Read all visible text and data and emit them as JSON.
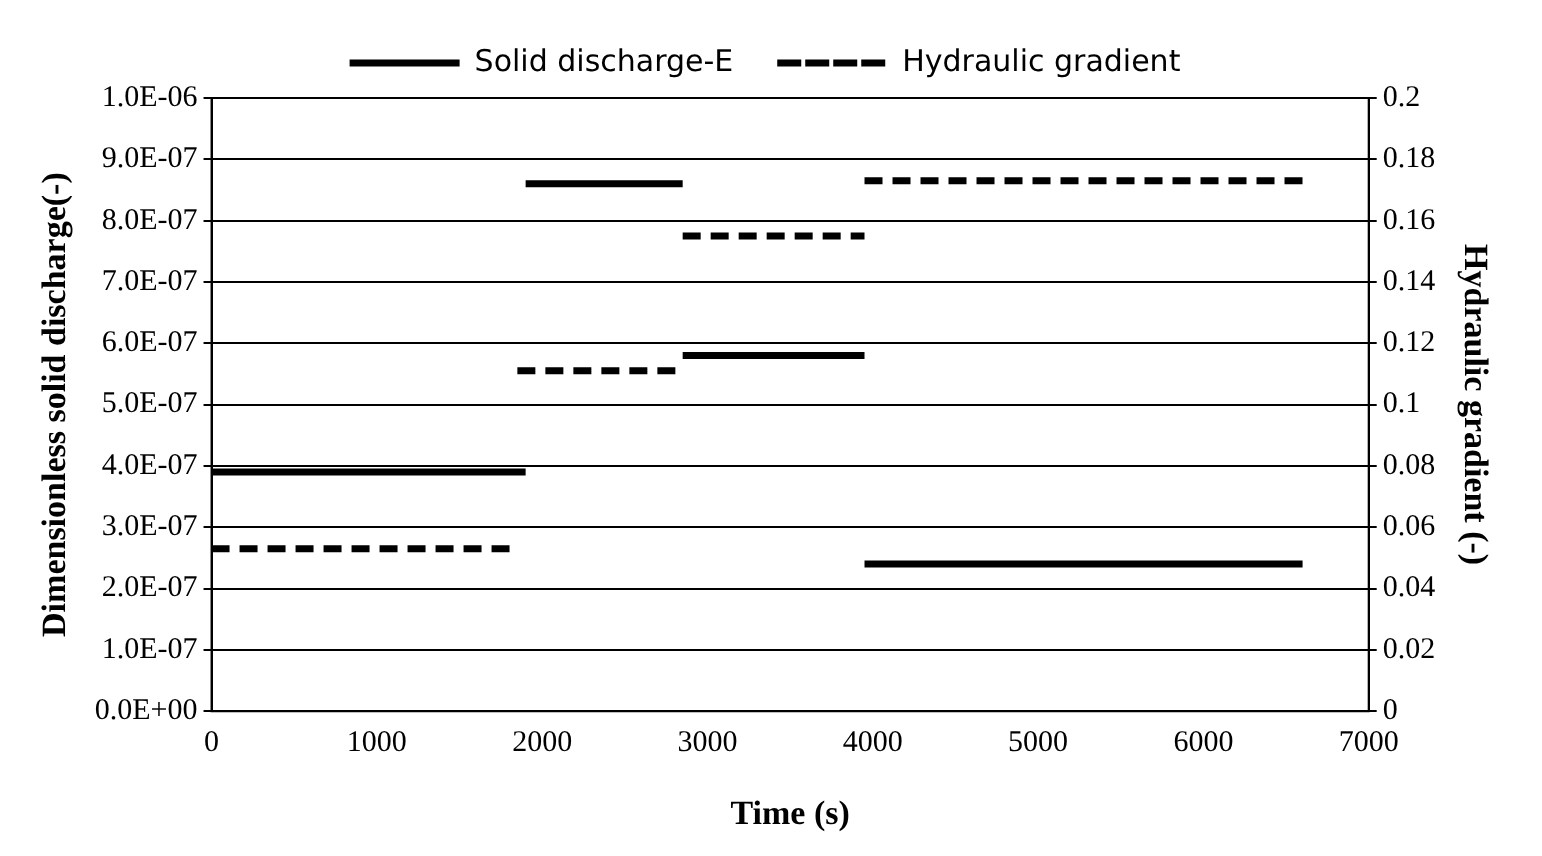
{
  "chart_data": {
    "type": "line",
    "xlabel": "Time (s)",
    "ylabel": "Dimensionless solid discharge(-)",
    "y2label": "Hydraulic gradient (-)",
    "series": [
      {
        "name": "Solid discharge-E",
        "color": "#000000",
        "line_style": "solid",
        "x": [
          0,
          1900,
          null,
          1900,
          2850,
          null,
          2850,
          3950,
          null,
          3950,
          6600
        ],
        "values": [
          3.9e-07,
          3.9e-07,
          null,
          8.6e-07,
          8.6e-07,
          null,
          5.8e-07,
          5.8e-07,
          null,
          2.4e-07,
          2.4e-07
        ]
      },
      {
        "name": "Hydraulic gradient",
        "color": "#000000",
        "line_style": "dashed",
        "axis": "y2",
        "x": [
          0,
          1850,
          null,
          1850,
          2850,
          null,
          2850,
          3950,
          null,
          3950,
          6600
        ],
        "values": [
          0.053,
          0.053,
          null,
          0.111,
          0.111,
          null,
          0.155,
          0.155,
          null,
          0.173,
          0.173
        ]
      }
    ],
    "xlim": [
      0,
      7000
    ],
    "xticks": [
      0,
      1000,
      2000,
      3000,
      4000,
      5000,
      6000,
      7000
    ],
    "ylim": [
      0,
      1e-06
    ],
    "yticks": [
      {
        "value": 0,
        "label": "0.0E+00"
      },
      {
        "value": 1e-07,
        "label": "1.0E-07"
      },
      {
        "value": 2e-07,
        "label": "2.0E-07"
      },
      {
        "value": 3e-07,
        "label": "3.0E-07"
      },
      {
        "value": 4e-07,
        "label": "4.0E-07"
      },
      {
        "value": 5e-07,
        "label": "5.0E-07"
      },
      {
        "value": 6e-07,
        "label": "6.0E-07"
      },
      {
        "value": 7e-07,
        "label": "7.0E-07"
      },
      {
        "value": 8e-07,
        "label": "8.0E-07"
      },
      {
        "value": 9e-07,
        "label": "9.0E-07"
      },
      {
        "value": 1e-06,
        "label": "1.0E-06"
      }
    ],
    "y2lim": [
      0,
      0.2
    ],
    "y2ticks": [
      0,
      0.02,
      0.04,
      0.06,
      0.08,
      0.1,
      0.12,
      0.14,
      0.16,
      0.18,
      0.2
    ],
    "grid": "y",
    "legend": "top",
    "marker": "none"
  }
}
